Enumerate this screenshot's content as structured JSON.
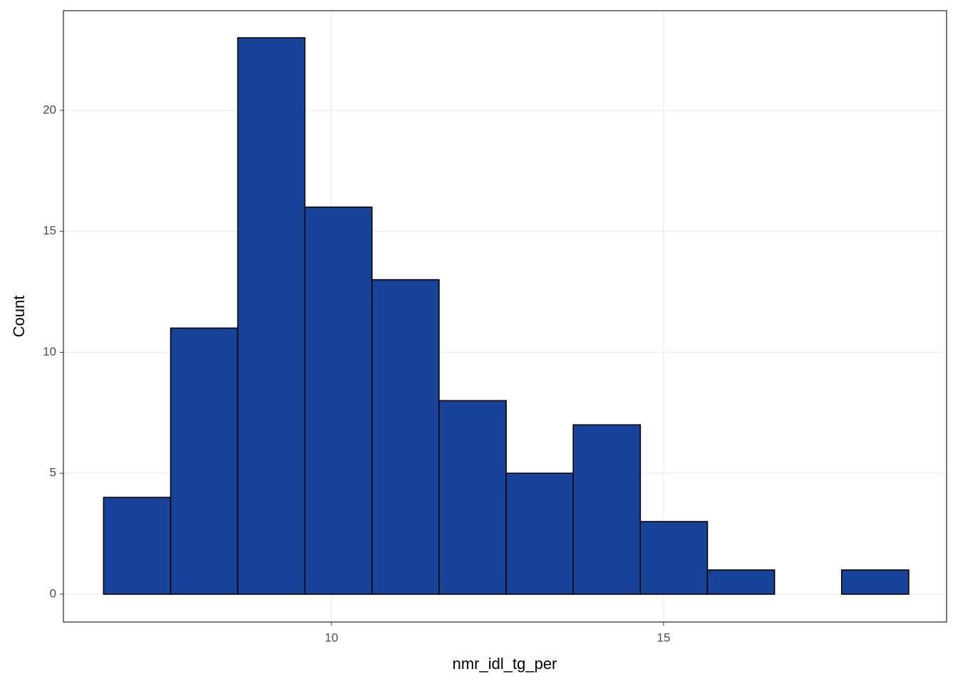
{
  "chart_data": {
    "type": "histogram",
    "x_label": "nmr_idl_tg_per",
    "y_label": "Count",
    "bins": [
      6.57,
      7.58,
      8.59,
      9.6,
      10.61,
      11.62,
      12.63,
      13.64,
      14.65,
      15.66,
      16.67,
      17.68,
      18.69
    ],
    "counts": [
      4,
      11,
      23,
      16,
      13,
      8,
      5,
      7,
      3,
      1,
      0,
      1
    ],
    "color": "#17449a",
    "edge_color": "#000000",
    "xlim": [
      5.966,
      19.26
    ],
    "xticks": [
      10,
      15
    ],
    "ylim": [
      -1.15,
      24.12
    ],
    "yticks": [
      0,
      5,
      10,
      15,
      20
    ],
    "grid": true
  }
}
